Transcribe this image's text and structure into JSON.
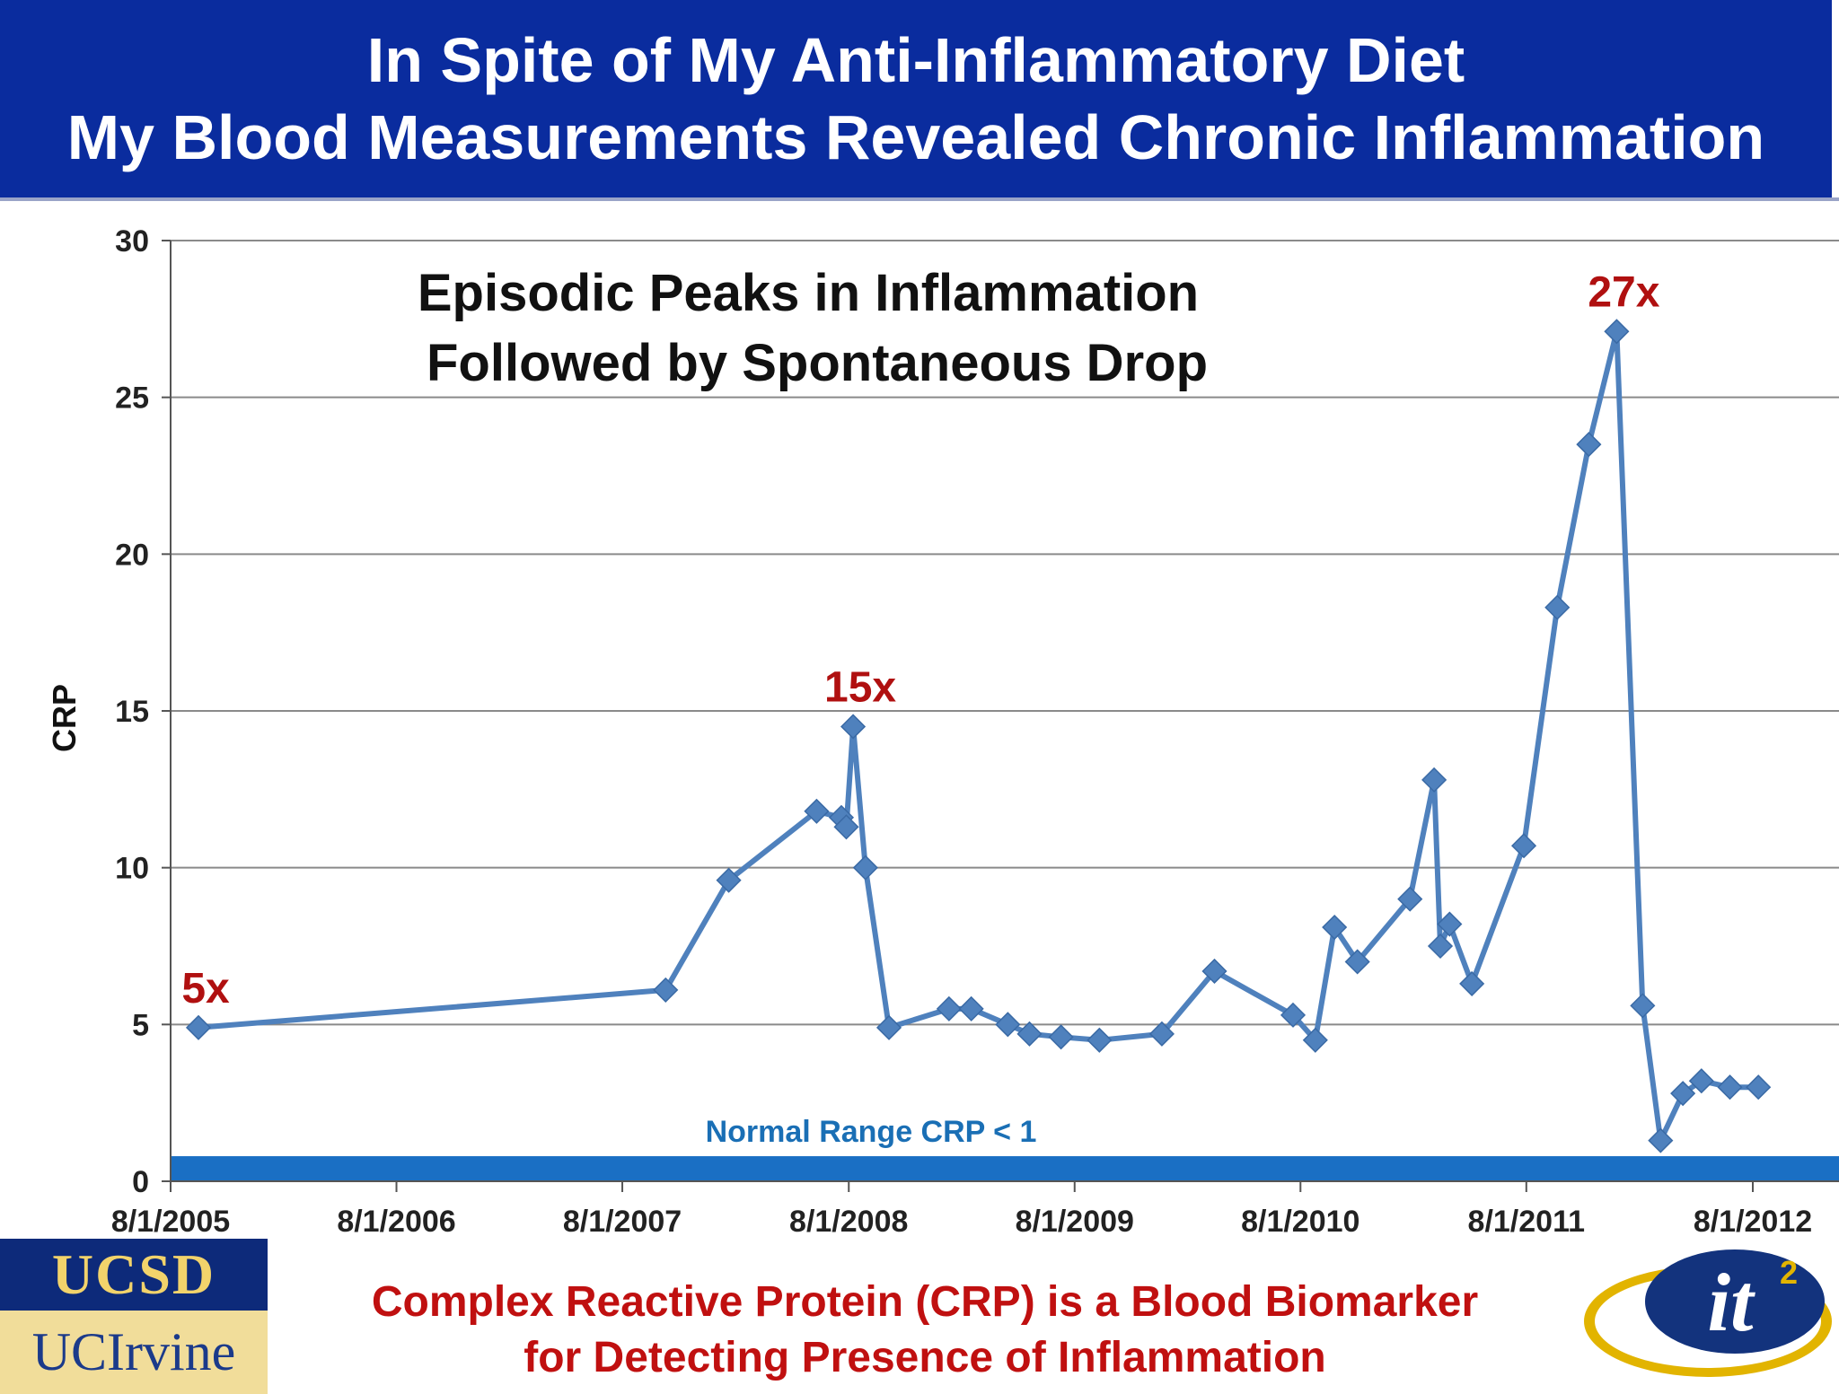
{
  "header": {
    "line1": "In Spite of My Anti-Inflammatory Diet",
    "line2": "My Blood Measurements Revealed Chronic Inflammation"
  },
  "footer": {
    "line1": "Complex Reactive Protein (CRP) is a Blood Biomarker",
    "line2": "for Detecting Presence of Inflammation"
  },
  "logos": {
    "ucsd": "UCSD",
    "uci": "UCIrvine",
    "it2_main": "it",
    "it2_sup": "2"
  },
  "chart_data": {
    "type": "line",
    "title_lines": [
      "Episodic Peaks in Inflammation",
      "Followed by Spontaneous Drop"
    ],
    "ylabel": "CRP",
    "xlabel": "",
    "ylim": [
      0,
      30
    ],
    "yticks": [
      0,
      5,
      10,
      15,
      20,
      25,
      30
    ],
    "xlim": [
      "2005-08-01",
      "2012-08-01"
    ],
    "xticks": [
      "8/1/2005",
      "8/1/2006",
      "8/1/2007",
      "8/1/2008",
      "8/1/2009",
      "8/1/2010",
      "8/1/2011",
      "8/1/2012"
    ],
    "grid": true,
    "series_color": "#4f81bd",
    "points": [
      {
        "x": "2005-09-15",
        "y": 4.9
      },
      {
        "x": "2007-10-10",
        "y": 6.1
      },
      {
        "x": "2008-01-20",
        "y": 9.6
      },
      {
        "x": "2008-06-10",
        "y": 11.8
      },
      {
        "x": "2008-07-20",
        "y": 11.6
      },
      {
        "x": "2008-07-28",
        "y": 11.3
      },
      {
        "x": "2008-08-08",
        "y": 14.5
      },
      {
        "x": "2008-08-28",
        "y": 10.0
      },
      {
        "x": "2008-10-05",
        "y": 4.9
      },
      {
        "x": "2009-01-10",
        "y": 5.5
      },
      {
        "x": "2009-02-15",
        "y": 5.5
      },
      {
        "x": "2009-04-15",
        "y": 5.0
      },
      {
        "x": "2009-05-20",
        "y": 4.7
      },
      {
        "x": "2009-07-10",
        "y": 4.6
      },
      {
        "x": "2009-09-10",
        "y": 4.5
      },
      {
        "x": "2009-12-20",
        "y": 4.7
      },
      {
        "x": "2010-03-15",
        "y": 6.7
      },
      {
        "x": "2010-07-20",
        "y": 5.3
      },
      {
        "x": "2010-08-25",
        "y": 4.5
      },
      {
        "x": "2010-09-25",
        "y": 8.1
      },
      {
        "x": "2010-11-01",
        "y": 7.0
      },
      {
        "x": "2011-01-25",
        "y": 9.0
      },
      {
        "x": "2011-03-05",
        "y": 12.8
      },
      {
        "x": "2011-03-15",
        "y": 7.5
      },
      {
        "x": "2011-03-30",
        "y": 8.2
      },
      {
        "x": "2011-05-05",
        "y": 6.3
      },
      {
        "x": "2011-07-28",
        "y": 10.7
      },
      {
        "x": "2011-09-20",
        "y": 18.3
      },
      {
        "x": "2011-11-10",
        "y": 23.5
      },
      {
        "x": "2011-12-25",
        "y": 27.1
      },
      {
        "x": "2012-02-05",
        "y": 5.6
      },
      {
        "x": "2012-03-05",
        "y": 1.3
      },
      {
        "x": "2012-04-10",
        "y": 2.8
      },
      {
        "x": "2012-05-10",
        "y": 3.2
      },
      {
        "x": "2012-06-25",
        "y": 3.0
      },
      {
        "x": "2012-08-10",
        "y": 3.0
      }
    ],
    "annotations": [
      {
        "text": "5x",
        "x": "2005-09-15",
        "y": 4.9
      },
      {
        "text": "15x",
        "x": "2008-08-08",
        "y": 14.5
      },
      {
        "text": "27x",
        "x": "2011-12-25",
        "y": 27.1
      }
    ],
    "normal_range": {
      "label": "Normal Range CRP < 1",
      "upper": 0.8,
      "color": "#1a6fc4"
    }
  }
}
